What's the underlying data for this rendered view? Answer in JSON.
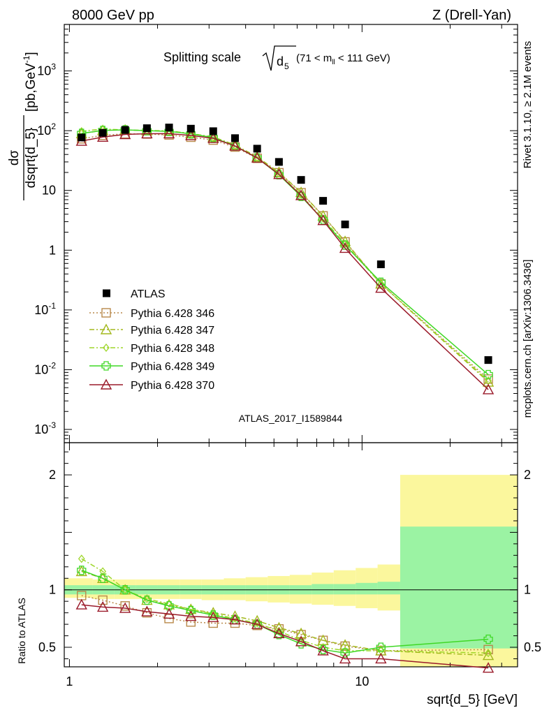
{
  "header": {
    "left": "8000 GeV pp",
    "right": "Z (Drell-Yan)"
  },
  "side_labels": {
    "rivet": "Rivet 3.1.10, ≥ 2.1M events",
    "mcplots": "mcplots.cern.ch [arXiv:1306.3436]"
  },
  "watermark": "ATLAS_2017_I1589844",
  "plot_title": {
    "prefix": "Splitting scale",
    "radicand": "d",
    "radicand_sub": "5",
    "cut_open": "(71 < m",
    "cut_sub": "ll",
    "cut_close": " < 111 GeV)"
  },
  "ylabel_main": {
    "num": "dσ",
    "den": "dsqrt{d_5}",
    "unit": "[pb,GeV",
    "unit_sup": "-1",
    "unit_close": "]"
  },
  "ylabel_ratio": "Ratio to ATLAS",
  "xlabel": "sqrt{d_5} [GeV]",
  "legend": [
    "ATLAS",
    "Pythia 6.428 346",
    "Pythia 6.428 347",
    "Pythia 6.428 348",
    "Pythia 6.428 349",
    "Pythia 6.428 370"
  ],
  "chart_data": {
    "type": "scatter",
    "x_scale": "log",
    "xlim": [
      0.96,
      34
    ],
    "main": {
      "y_scale": "log",
      "ylim": [
        0.0006,
        6000
      ],
      "y_ticks": [
        {
          "v": 0.001,
          "m": "10",
          "e": "-3"
        },
        {
          "v": 0.01,
          "m": "10",
          "e": "-2"
        },
        {
          "v": 0.1,
          "m": "10",
          "e": "-1"
        },
        {
          "v": 1,
          "m": "1",
          "e": ""
        },
        {
          "v": 10,
          "m": "10",
          "e": ""
        },
        {
          "v": 100,
          "m": "10",
          "e": "2"
        },
        {
          "v": 1000,
          "m": "10",
          "e": "3"
        }
      ]
    },
    "ratio": {
      "ylim": [
        0.33,
        2.28
      ],
      "y_ticks": [
        0.5,
        1,
        2
      ]
    },
    "x_ticks": [
      1,
      10
    ],
    "data": {
      "name": "ATLAS",
      "x": [
        1.1,
        1.3,
        1.55,
        1.84,
        2.19,
        2.6,
        3.1,
        3.68,
        4.38,
        5.2,
        6.19,
        7.36,
        8.75,
        11.6,
        27.0
      ],
      "y": [
        77,
        92,
        103,
        110,
        113,
        108,
        98,
        75,
        50,
        30,
        15,
        6.7,
        2.7,
        0.58,
        0.0145
      ]
    },
    "bands": {
      "edges": [
        0.96,
        1.2,
        1.42,
        1.69,
        2.0,
        2.38,
        2.83,
        3.37,
        4.0,
        4.76,
        5.66,
        6.73,
        8.0,
        9.51,
        11.3,
        13.5,
        34
      ],
      "stat_lo": [
        0.96,
        0.96,
        0.96,
        0.96,
        0.96,
        0.96,
        0.96,
        0.96,
        0.96,
        0.96,
        0.96,
        0.96,
        0.96,
        0.96,
        0.96,
        0.49
      ],
      "stat_hi": [
        1.04,
        1.04,
        1.04,
        1.04,
        1.04,
        1.04,
        1.04,
        1.04,
        1.04,
        1.04,
        1.04,
        1.05,
        1.05,
        1.06,
        1.07,
        1.55
      ],
      "tot_lo": [
        0.93,
        0.92,
        0.92,
        0.92,
        0.92,
        0.92,
        0.91,
        0.91,
        0.9,
        0.89,
        0.88,
        0.87,
        0.86,
        0.84,
        0.82,
        0.33
      ],
      "tot_hi": [
        1.1,
        1.09,
        1.09,
        1.09,
        1.09,
        1.09,
        1.09,
        1.1,
        1.11,
        1.12,
        1.13,
        1.15,
        1.17,
        1.19,
        1.22,
        2.0
      ]
    },
    "series": [
      {
        "name": "Pythia 6.428 346",
        "color": "#b8894a",
        "dash": "2,3",
        "marker": "square",
        "ratio": [
          0.95,
          0.91,
          0.86,
          0.8,
          0.75,
          0.72,
          0.71,
          0.71,
          0.69,
          0.66,
          0.61,
          0.56,
          0.51,
          0.47,
          0.48
        ]
      },
      {
        "name": "Pythia 6.428 347",
        "color": "#a3b81d",
        "dash": "7,3,2,3",
        "marker": "triangle",
        "ratio": [
          1.16,
          1.1,
          1.0,
          0.91,
          0.87,
          0.83,
          0.8,
          0.77,
          0.73,
          0.67,
          0.62,
          0.56,
          0.52,
          0.47,
          0.43
        ]
      },
      {
        "name": "Pythia 6.428 348",
        "color": "#9ed62a",
        "dash": "7,3,2,3",
        "marker": "diamond",
        "ratio": [
          1.27,
          1.16,
          1.0,
          0.92,
          0.88,
          0.83,
          0.79,
          0.75,
          0.71,
          0.64,
          0.56,
          0.5,
          0.47,
          0.47,
          0.45
        ]
      },
      {
        "name": "Pythia 6.428 349",
        "color": "#3fd825",
        "dash": "",
        "marker": "cross",
        "ratio": [
          1.17,
          1.1,
          1.0,
          0.91,
          0.86,
          0.82,
          0.78,
          0.74,
          0.7,
          0.61,
          0.53,
          0.48,
          0.45,
          0.5,
          0.57
        ]
      },
      {
        "name": "Pythia 6.428 370",
        "color": "#9a1a2a",
        "dash": "",
        "marker": "triangle",
        "ratio": [
          0.87,
          0.85,
          0.84,
          0.81,
          0.79,
          0.77,
          0.76,
          0.74,
          0.7,
          0.62,
          0.55,
          0.47,
          0.4,
          0.4,
          0.32
        ]
      }
    ]
  }
}
